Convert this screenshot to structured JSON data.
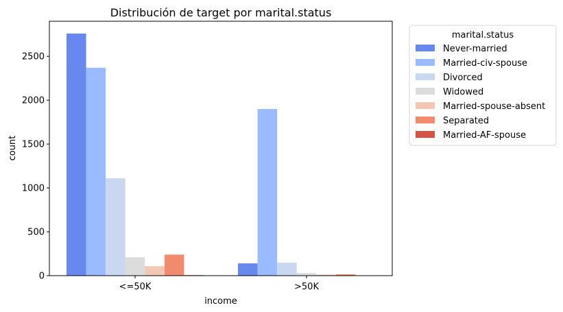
{
  "chart_data": {
    "type": "bar",
    "title": "Distribución de target por marital.status",
    "xlabel": "income",
    "ylabel": "count",
    "categories": [
      "<=50K",
      ">50K"
    ],
    "ylim": [
      0,
      2900
    ],
    "yticks": [
      0,
      500,
      1000,
      1500,
      2000,
      2500
    ],
    "grid": false,
    "legend": {
      "title": "marital.status",
      "placement": "outside-top-right"
    },
    "series": [
      {
        "name": "Never-married",
        "color": "#6788ee",
        "values": [
          2760,
          140
        ]
      },
      {
        "name": "Married-civ-spouse",
        "color": "#9abbff",
        "values": [
          2370,
          1900
        ]
      },
      {
        "name": "Divorced",
        "color": "#c9d7f0",
        "values": [
          1110,
          148
        ]
      },
      {
        "name": "Widowed",
        "color": "#dddcdc",
        "values": [
          210,
          30
        ]
      },
      {
        "name": "Married-spouse-absent",
        "color": "#f2c8b4",
        "values": [
          108,
          12
        ]
      },
      {
        "name": "Separated",
        "color": "#f08b6e",
        "values": [
          240,
          15
        ]
      },
      {
        "name": "Married-AF-spouse",
        "color": "#d65244",
        "values": [
          6,
          4
        ]
      }
    ]
  }
}
